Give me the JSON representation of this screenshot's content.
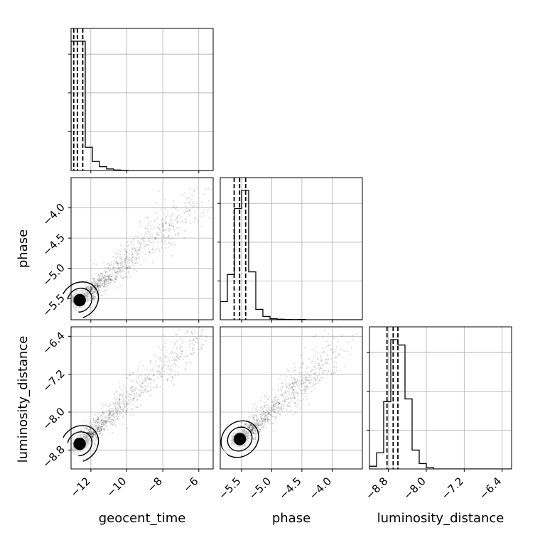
{
  "chart_data": {
    "type": "corner",
    "parameters": [
      "geocent_time",
      "phase",
      "luminosity_distance"
    ],
    "axes": {
      "geocent_time": {
        "label": "geocent_time",
        "range": [
          -13.1,
          -5.2
        ],
        "ticks": [
          -12,
          -10,
          -8,
          -6
        ],
        "tick_labels": [
          "−12",
          "−10",
          "−8",
          "−6"
        ],
        "quantiles": [
          -12.95,
          -12.75,
          -12.45
        ]
      },
      "phase": {
        "label": "phase",
        "range": [
          -5.85,
          -3.5
        ],
        "ticks": [
          -5.5,
          -5.0,
          -4.5,
          -4.0
        ],
        "tick_labels": [
          "−5.5",
          "−5.0",
          "−4.5",
          "−4.0"
        ],
        "quantiles": [
          -5.62,
          -5.53,
          -5.43
        ]
      },
      "luminosity_distance": {
        "label": "luminosity_distance",
        "range": [
          -9.2,
          -6.2
        ],
        "ticks": [
          -8.8,
          -8.0,
          -7.2,
          -6.4
        ],
        "tick_labels": [
          "−8.8",
          "−8.0",
          "−7.2",
          "−6.4"
        ],
        "quantiles": [
          -8.83,
          -8.7,
          -8.6
        ]
      }
    },
    "histograms": {
      "geocent_time": {
        "edges": [
          -13.1,
          -12.705,
          -12.31,
          -11.915,
          -11.52,
          -11.125,
          -10.73,
          -10.335,
          -9.94
        ],
        "counts": [
          1.0,
          1.0,
          0.18,
          0.07,
          0.03,
          0.012,
          0.004,
          0.002
        ]
      },
      "phase": {
        "edges": [
          -5.85,
          -5.7325,
          -5.615,
          -5.4975,
          -5.38,
          -5.2625,
          -5.145,
          -5.0275,
          -4.91,
          -4.7925,
          -4.675,
          -4.5575,
          -4.44
        ],
        "counts": [
          0.14,
          0.35,
          0.86,
          1.0,
          0.37,
          0.08,
          0.025,
          0.008,
          0.004,
          0.002,
          0.001,
          0.002
        ]
      },
      "luminosity_distance": {
        "edges": [
          -9.2,
          -9.05,
          -8.9,
          -8.75,
          -8.6,
          -8.45,
          -8.3,
          -8.15,
          -8.0,
          -7.85
        ],
        "counts": [
          0.02,
          0.12,
          0.5,
          0.96,
          0.92,
          0.52,
          0.14,
          0.04,
          0.01
        ]
      }
    },
    "scatter_2d": [
      {
        "x": "geocent_time",
        "y": "phase",
        "center": [
          -12.7,
          -5.55
        ],
        "trend_to": [
          -6.0,
          -3.85
        ]
      },
      {
        "x": "geocent_time",
        "y": "luminosity_distance",
        "center": [
          -12.7,
          -8.7
        ],
        "trend_to": [
          -5.9,
          -6.3
        ]
      },
      {
        "x": "phase",
        "y": "luminosity_distance",
        "center": [
          -5.55,
          -8.6
        ],
        "trend_to": [
          -3.85,
          -6.6
        ]
      }
    ]
  }
}
